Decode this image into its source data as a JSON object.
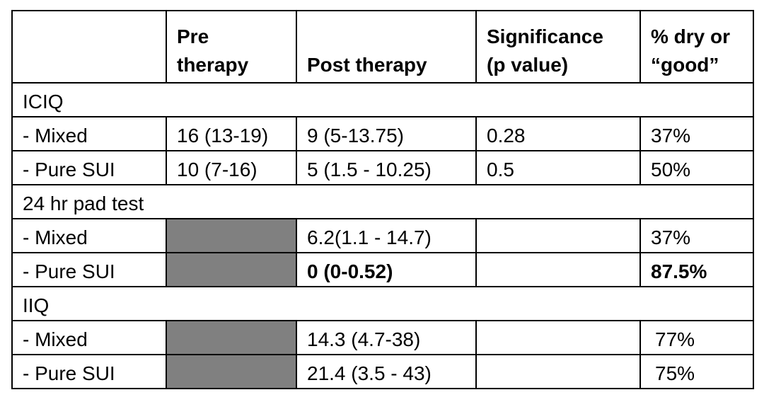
{
  "headers": {
    "label": "",
    "pre": "Pre therapy",
    "post": "Post therapy",
    "significance": "Significance (p value)",
    "dry": "% dry or “good”"
  },
  "sections": [
    {
      "title": "ICIQ",
      "rows": [
        {
          "label": "- Mixed",
          "pre": "16 (13-19)",
          "post": "9 (5-13.75)",
          "p": "0.28",
          "dry": "37%"
        },
        {
          "label": "- Pure SUI",
          "pre": "10 (7-16)",
          "post": "5 (1.5 - 10.25)",
          "p": "0.5",
          "dry": "50%"
        }
      ]
    },
    {
      "title": "24 hr pad test",
      "rows": [
        {
          "label": "- Mixed",
          "pre": "",
          "post": "6.2(1.1 - 14.7)",
          "p": "",
          "dry": "37%"
        },
        {
          "label": "- Pure SUI",
          "pre": "",
          "post": "0 (0-0.52)",
          "p": "",
          "dry": "87.5%"
        }
      ]
    },
    {
      "title": "IIQ",
      "rows": [
        {
          "label": "- Mixed",
          "pre": "",
          "post": "14.3 (4.7-38)",
          "p": "",
          "dry": "77%"
        },
        {
          "label": "- Pure SUI",
          "pre": "",
          "post": "21.4 (3.5 - 43)",
          "p": "",
          "dry": "75%"
        }
      ]
    }
  ]
}
